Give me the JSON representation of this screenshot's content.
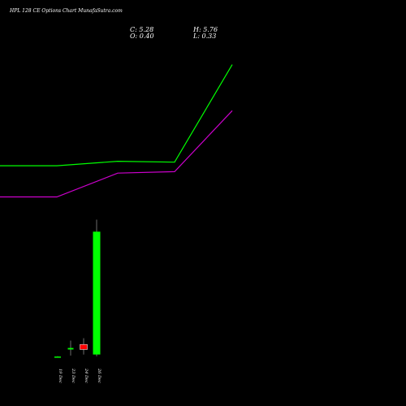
{
  "header": {
    "title": "HPL 128 CE Options Chart MunafaSutra.com",
    "close": "C: 5.28",
    "high": "H: 5.76",
    "open": "O: 0.40",
    "low": "L: 0.33"
  },
  "chart_data": {
    "type": "candlestick",
    "title": "HPL 128 CE Options Chart MunafaSutra.com",
    "categories": [
      "19 Dec",
      "23 Dec",
      "24 Dec",
      "26 Dec"
    ],
    "candles": [
      {
        "x": "19 Dec",
        "open": 0.3,
        "high": 0.33,
        "low": 0.28,
        "close": 0.32
      },
      {
        "x": "23 Dec",
        "open": 0.6,
        "high": 0.95,
        "low": 0.36,
        "close": 0.66
      },
      {
        "x": "24 Dec",
        "open": 0.8,
        "high": 1.05,
        "low": 0.4,
        "close": 0.6
      },
      {
        "x": "26 Dec",
        "open": 0.4,
        "high": 5.76,
        "low": 0.33,
        "close": 5.28
      }
    ],
    "series": [
      {
        "color": "#00ff00",
        "points": [
          [
            0,
            7.9
          ],
          [
            70,
            7.9
          ],
          [
            145,
            8.05
          ],
          [
            215,
            8.02
          ],
          [
            286,
            11.3
          ]
        ]
      },
      {
        "color": "#cc00cc",
        "points": [
          [
            0,
            6.85
          ],
          [
            70,
            6.85
          ],
          [
            145,
            7.65
          ],
          [
            215,
            7.7
          ],
          [
            286,
            9.75
          ]
        ]
      }
    ],
    "colors": {
      "up": "#00ff00",
      "down": "#ff0000",
      "background": "#000000"
    }
  }
}
